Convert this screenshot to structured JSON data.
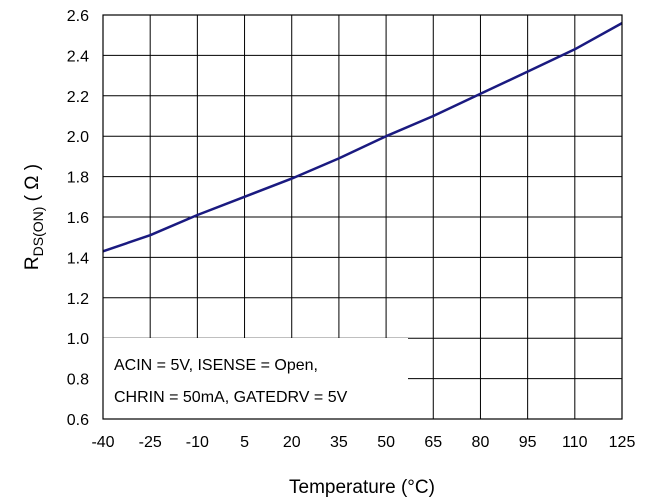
{
  "chart_data": {
    "type": "line",
    "title": "",
    "xlabel": "Temperature (°C)",
    "ylabel_main": "R",
    "ylabel_sub": "DS(ON)",
    "ylabel_unit": " ( Ω )",
    "xlim": [
      -40,
      125
    ],
    "ylim": [
      0.6,
      2.6
    ],
    "x_ticks": [
      -40,
      -25,
      -10,
      5,
      20,
      35,
      50,
      65,
      80,
      95,
      110,
      125
    ],
    "y_ticks": [
      0.6,
      0.8,
      1.0,
      1.2,
      1.4,
      1.6,
      1.8,
      2.0,
      2.2,
      2.4,
      2.6
    ],
    "y_tick_labels": [
      "0.6",
      "0.8",
      "1.0",
      "1.2",
      "1.4",
      "1.6",
      "1.8",
      "2.0",
      "2.2",
      "2.4",
      "2.6"
    ],
    "grid": true,
    "line_color": "#1a1a80",
    "series": [
      {
        "x": [
          -40,
          -25,
          -10,
          5,
          20,
          35,
          50,
          65,
          80,
          95,
          110,
          125
        ],
        "y": [
          1.43,
          1.51,
          1.61,
          1.7,
          1.79,
          1.89,
          2.0,
          2.1,
          2.21,
          2.32,
          2.43,
          2.56
        ]
      }
    ],
    "annotation": {
      "line1": "ACIN = 5V, ISENSE = Open,",
      "line2": "CHRIN = 50mA, GATEDRV = 5V"
    }
  }
}
